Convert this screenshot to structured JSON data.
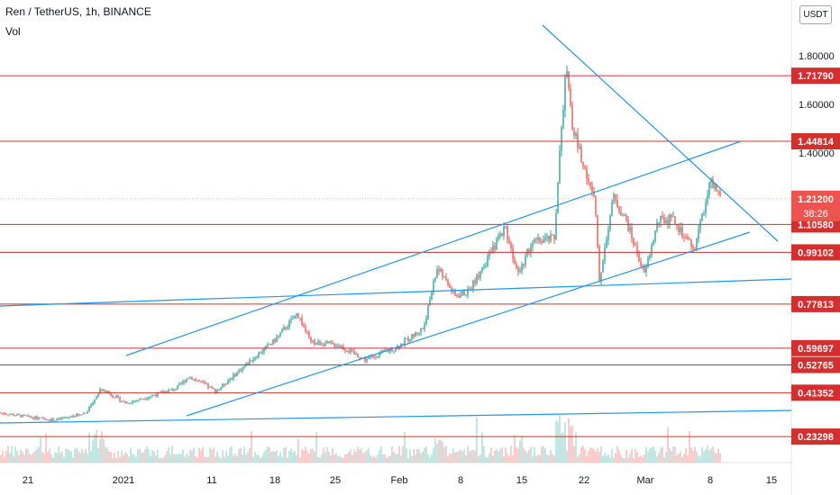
{
  "header": {
    "title": "Ren / TetherUS, 1h, BINANCE",
    "vol_label": "Vol",
    "currency_badge": "USDT"
  },
  "colors": {
    "candle_up": "#26a69a",
    "candle_down": "#ef5350",
    "hline": "#d32f2f",
    "trendline": "#2196f3",
    "current_price": "#ef5350",
    "axis_text": "#131722"
  },
  "chart_data": {
    "type": "candlestick",
    "ylim": [
      0.18,
      2.0
    ],
    "y_ticks": [
      1.8,
      1.6,
      1.4
    ],
    "x_tick_labels": [
      "21",
      "2021",
      "11",
      "18",
      "25",
      "Feb",
      "8",
      "15",
      "22",
      "Mar",
      "8",
      "15"
    ],
    "horizontal_levels": [
      1.7179,
      1.44814,
      1.1058,
      0.99102,
      0.77813,
      0.59697,
      0.52765,
      0.41352,
      0.23298
    ],
    "horizontal_level_labels": [
      "1.71790",
      "1.44814",
      "1.10580",
      "0.99102",
      "0.77813",
      "0.59697",
      "0.52765",
      "0.41352",
      "0.23298"
    ],
    "current_price": 1.212,
    "current_price_label": "1.21200",
    "countdown_label": "38:26",
    "volume_visible": true
  }
}
